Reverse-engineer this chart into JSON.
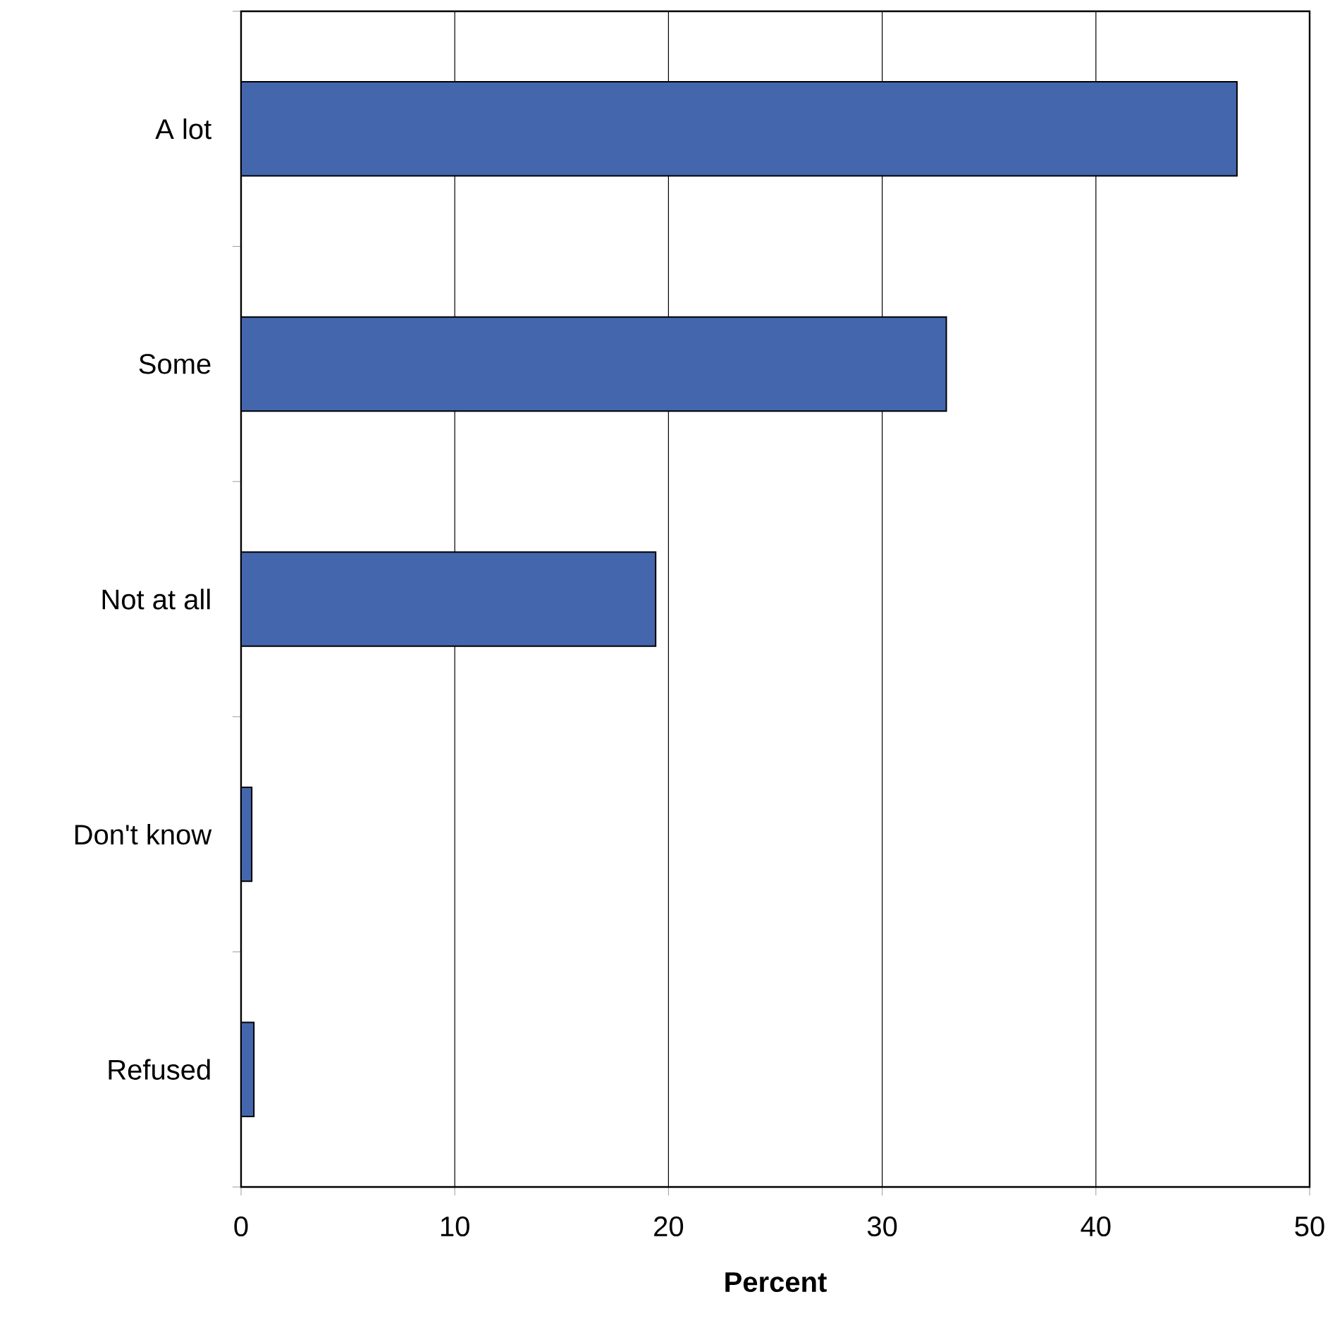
{
  "chart_data": {
    "type": "bar",
    "orientation": "horizontal",
    "xlabel": "**Percent**",
    "categories": [
      "A lot",
      "Some",
      "Not at all",
      "Don't know",
      "Refused"
    ],
    "values": [
      46.6,
      33.0,
      19.4,
      0.5,
      0.6
    ],
    "color": "#4466ad",
    "xlim": [
      0,
      50
    ],
    "xticks": [
      0,
      10,
      20,
      30,
      40,
      50
    ],
    "grid": "x"
  }
}
